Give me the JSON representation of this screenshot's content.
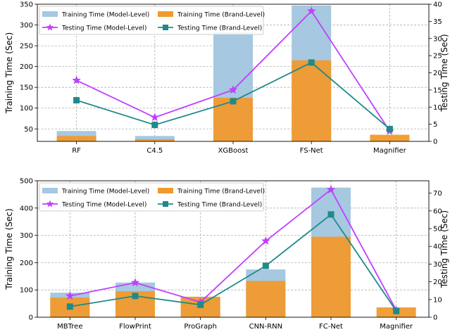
{
  "chart_data": [
    {
      "type": "bar",
      "categories": [
        "RF",
        "C4.5",
        "XGBoost",
        "FS-Net",
        "Magnifier"
      ],
      "series": [
        {
          "name": "Training Time (Model-Level)",
          "kind": "bar",
          "axis": "left",
          "color": "#a6c8e0",
          "values": [
            45,
            33,
            283,
            347,
            0
          ]
        },
        {
          "name": "Training Time (Brand-Level)",
          "kind": "bar",
          "axis": "left",
          "color": "#f09a2e",
          "values": [
            33,
            25,
            125,
            215,
            36
          ]
        },
        {
          "name": "Testing Time (Model-Level)",
          "kind": "line",
          "marker": "star",
          "axis": "right",
          "color": "#bf40ff",
          "values": [
            17.8,
            7.0,
            15.0,
            38.0,
            3.0
          ]
        },
        {
          "name": "Testing Time (Brand-Level)",
          "kind": "line",
          "marker": "square",
          "axis": "right",
          "color": "#1f8a8a",
          "values": [
            12.0,
            4.8,
            11.7,
            23.0,
            3.6
          ]
        }
      ],
      "ylabel": "Training Time (Sec)",
      "ylabel_right": "Testing Time (Sec)",
      "ylim": [
        20,
        350
      ],
      "ylim_right": [
        0,
        40
      ],
      "yticks": [
        50,
        100,
        150,
        200,
        250,
        300,
        350
      ],
      "yticks_right": [
        0,
        5,
        10,
        15,
        20,
        25,
        30,
        35,
        40
      ],
      "grid": true,
      "legend": "top"
    },
    {
      "type": "bar",
      "categories": [
        "MBTree",
        "FlowPrint",
        "ProGraph",
        "CNN-RNN",
        "FC-Net",
        "Magnifier"
      ],
      "series": [
        {
          "name": "Training Time (Model-Level)",
          "kind": "bar",
          "axis": "left",
          "color": "#a6c8e0",
          "values": [
            90,
            127,
            75,
            175,
            475,
            0
          ]
        },
        {
          "name": "Training Time (Brand-Level)",
          "kind": "bar",
          "axis": "left",
          "color": "#f09a2e",
          "values": [
            72,
            95,
            75,
            133,
            295,
            36
          ]
        },
        {
          "name": "Testing Time (Model-Level)",
          "kind": "line",
          "marker": "star",
          "axis": "right",
          "color": "#bf40ff",
          "values": [
            12.0,
            19.5,
            8.5,
            43.0,
            72.0,
            4.0
          ]
        },
        {
          "name": "Testing Time (Brand-Level)",
          "kind": "line",
          "marker": "square",
          "axis": "right",
          "color": "#1f8a8a",
          "values": [
            6.0,
            12.0,
            7.0,
            29.0,
            58.0,
            3.5
          ]
        }
      ],
      "ylabel": "Training Time (Sec)",
      "ylabel_right": "Testing Time (Sec)",
      "ylim": [
        0,
        500
      ],
      "ylim_right": [
        0,
        77
      ],
      "yticks": [
        0,
        100,
        200,
        300,
        400,
        500
      ],
      "yticks_right": [
        0,
        10,
        20,
        30,
        40,
        50,
        60,
        70
      ],
      "grid": true,
      "legend": "top"
    }
  ]
}
